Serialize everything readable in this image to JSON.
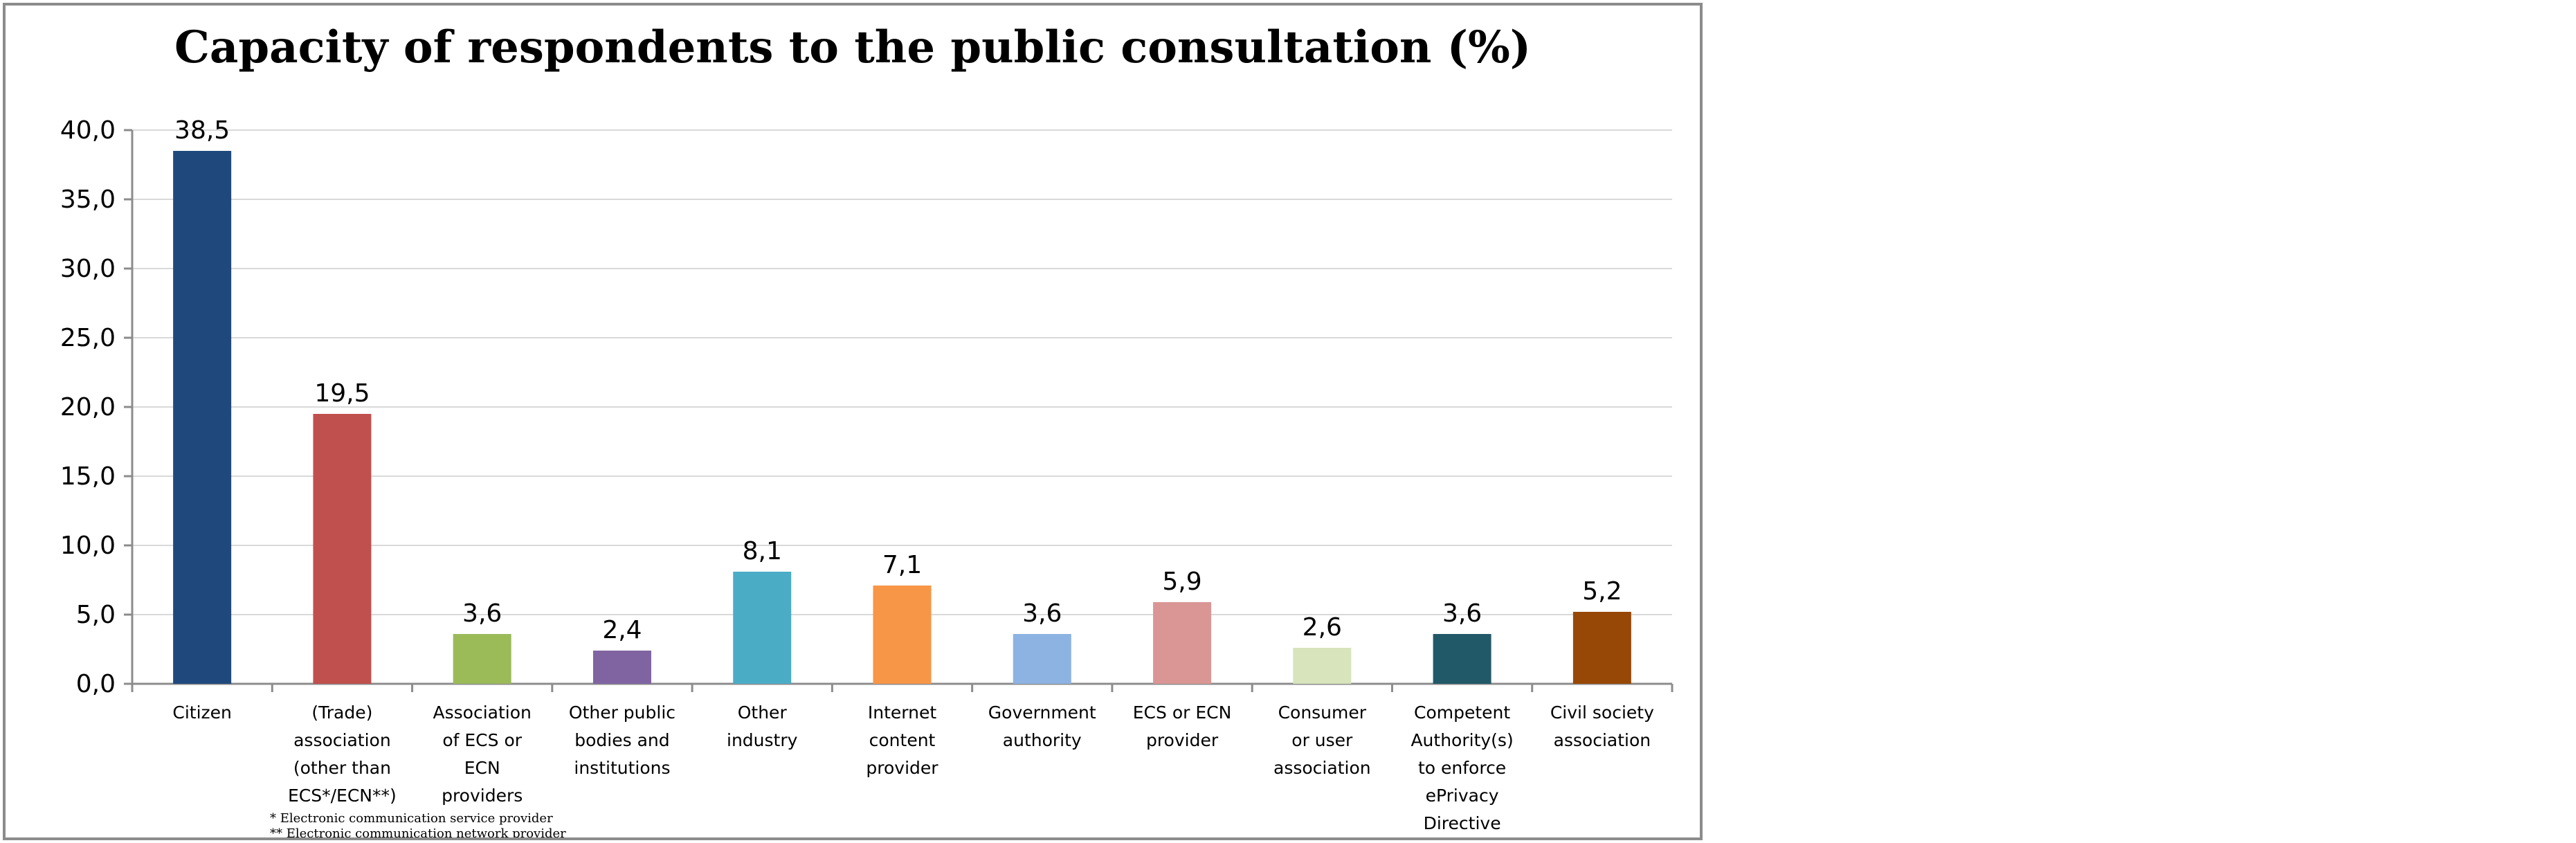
{
  "chart_data": {
    "type": "bar",
    "title": "Capacity of respondents to the public  consultation  (%)",
    "xlabel": "",
    "ylabel": "",
    "ylim": [
      0,
      40
    ],
    "yticks": [
      "0,0",
      "5,0",
      "10,0",
      "15,0",
      "20,0",
      "25,0",
      "30,0",
      "35,0",
      "40,0"
    ],
    "grid": true,
    "categories": [
      [
        "Citizen"
      ],
      [
        "(Trade)",
        "association",
        "(other than",
        "ECS*/ECN**)"
      ],
      [
        "Association",
        "of ECS or",
        "ECN",
        "providers"
      ],
      [
        "Other public",
        "bodies and",
        "institutions"
      ],
      [
        "Other",
        "industry"
      ],
      [
        "Internet",
        "content",
        "provider"
      ],
      [
        "Government",
        "authority"
      ],
      [
        "ECS or ECN",
        "provider"
      ],
      [
        "Consumer",
        "or user",
        "association"
      ],
      [
        "Competent",
        "Authority(s)",
        "to enforce",
        "ePrivacy",
        "Directive"
      ],
      [
        "Civil society",
        "association"
      ]
    ],
    "values": [
      38.5,
      19.5,
      3.6,
      2.4,
      8.1,
      7.1,
      3.6,
      5.9,
      2.6,
      3.6,
      5.2
    ],
    "value_labels": [
      "38,5",
      "19,5",
      "3,6",
      "2,4",
      "8,1",
      "7,1",
      "3,6",
      "5,9",
      "2,6",
      "3,6",
      "5,2"
    ],
    "colors": [
      "#1f497d",
      "#c0504d",
      "#9bbb59",
      "#8064a2",
      "#4bacc6",
      "#f79646",
      "#8db3e2",
      "#da9694",
      "#d7e4bc",
      "#215968",
      "#974806"
    ],
    "footnotes": [
      "* Electronic communication service provider",
      "** Electronic communication network provider"
    ]
  }
}
